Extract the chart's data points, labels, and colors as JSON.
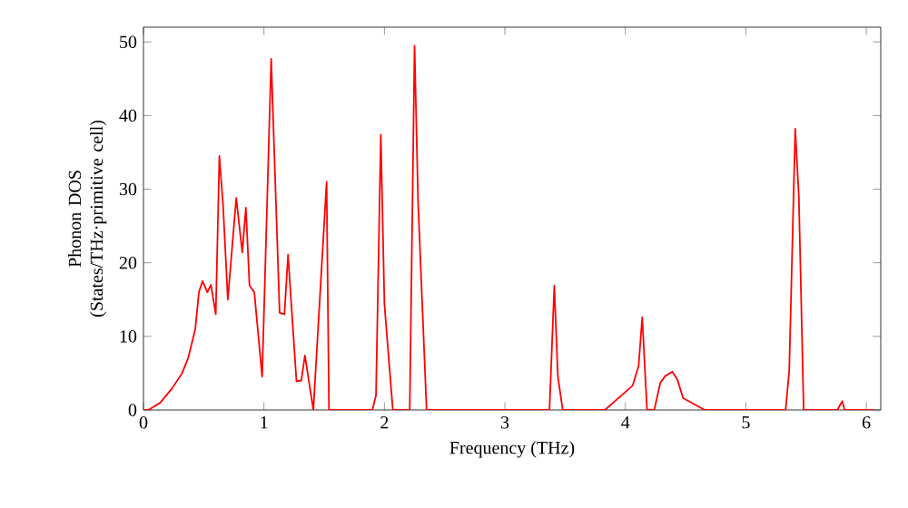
{
  "chart_data": {
    "type": "line",
    "xlabel": "Frequency (THz)",
    "ylabel": "Phonon DOS\n(States/THz·primitive cell)",
    "x": [
      0,
      0.04,
      0.14,
      0.24,
      0.32,
      0.37,
      0.43,
      0.46,
      0.49,
      0.53,
      0.56,
      0.6,
      0.63,
      0.66,
      0.7,
      0.77,
      0.82,
      0.85,
      0.88,
      0.92,
      0.985,
      1.06,
      1.13,
      1.17,
      1.2,
      1.27,
      1.31,
      1.34,
      1.41,
      1.52,
      1.54,
      1.9,
      1.93,
      1.97,
      2.0,
      2.07,
      2.21,
      2.25,
      2.28,
      2.35,
      3.37,
      3.41,
      3.44,
      3.48,
      3.83,
      4.06,
      4.11,
      4.14,
      4.18,
      4.24,
      4.29,
      4.33,
      4.39,
      4.43,
      4.48,
      4.66,
      5.33,
      5.36,
      5.41,
      5.44,
      5.48,
      5.76,
      5.8,
      5.82,
      6.06
    ],
    "series": [
      {
        "color": "#ff0000",
        "values": [
          0,
          0,
          1,
          3,
          5,
          7,
          11,
          16,
          17.5,
          16,
          17,
          13,
          34.5,
          28,
          15,
          28.8,
          21.4,
          27.5,
          16.9,
          16,
          4.5,
          47.7,
          13.2,
          13,
          21.1,
          3.9,
          4,
          7.4,
          0,
          31,
          0,
          0,
          2,
          37.4,
          14.4,
          0,
          0,
          49.5,
          28,
          0,
          0,
          16.9,
          4.5,
          0,
          0,
          3.3,
          6,
          12.6,
          0,
          0,
          3.7,
          4.6,
          5.2,
          4.2,
          1.6,
          0,
          0,
          5.3,
          38.2,
          29,
          0,
          0,
          1.2,
          0,
          0
        ]
      }
    ],
    "xlim": [
      0,
      6.12
    ],
    "ylim": [
      0,
      52
    ],
    "xticks": [
      0,
      1,
      2,
      3,
      4,
      5,
      6
    ],
    "yticks": [
      0,
      10,
      20,
      30,
      40,
      50
    ],
    "marker": "none",
    "line_style": "solid"
  }
}
